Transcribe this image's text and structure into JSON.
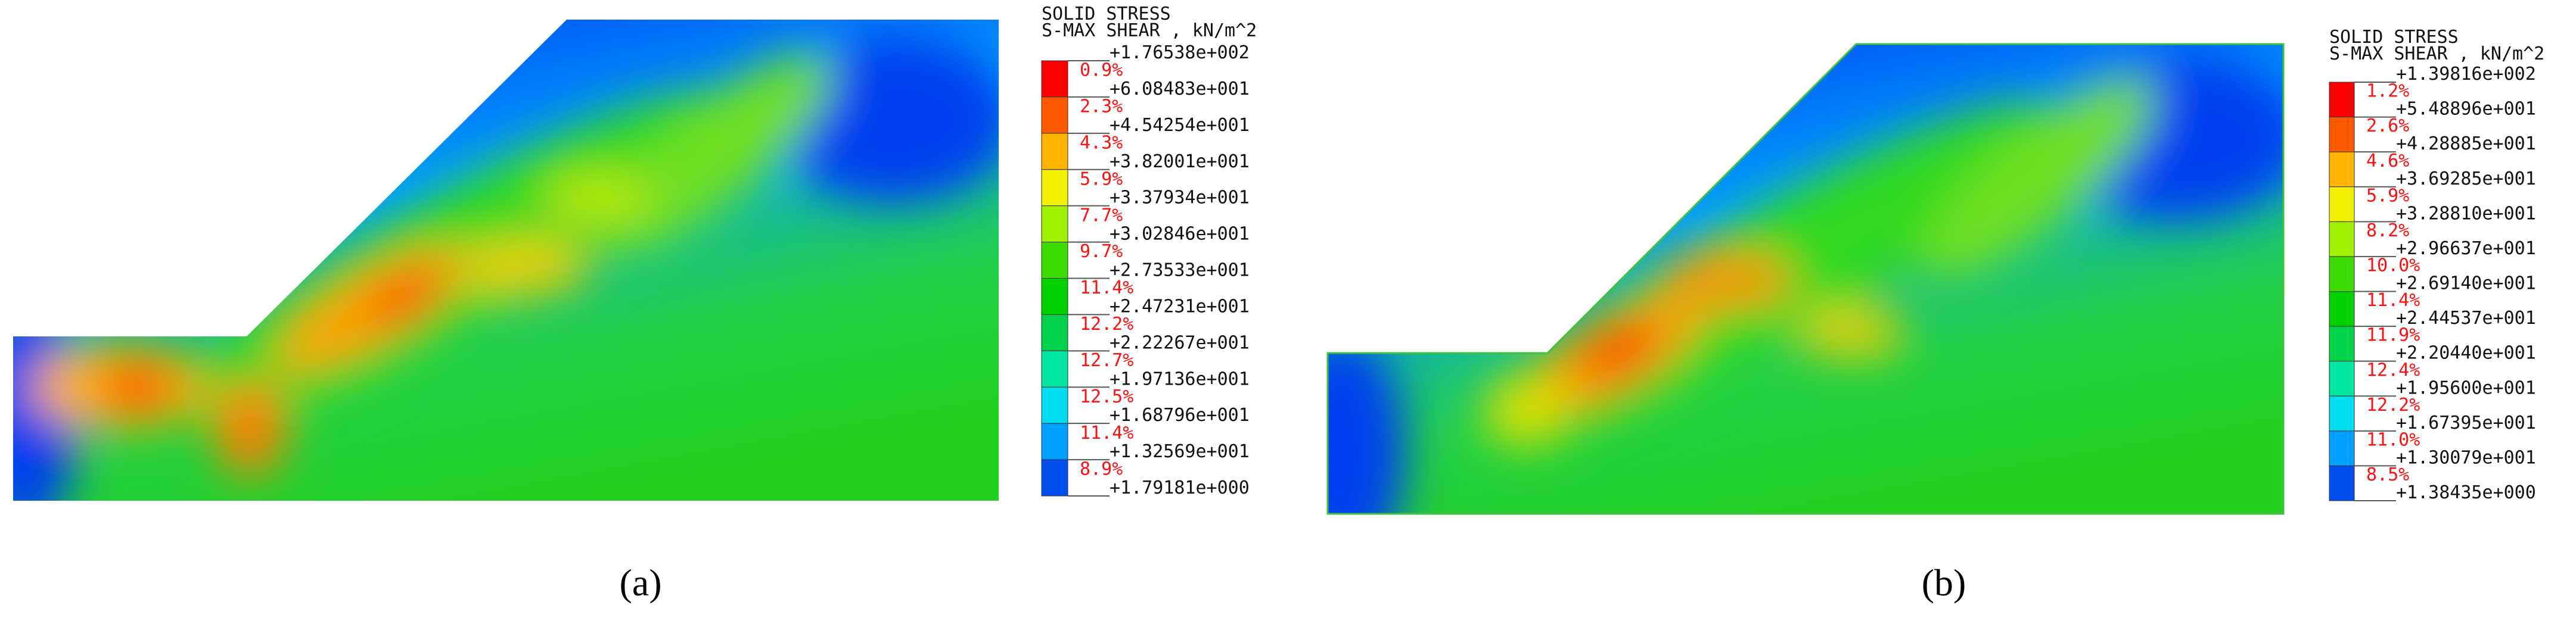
{
  "band_colors": [
    "#ff0000",
    "#ff5a00",
    "#ffb400",
    "#f0f000",
    "#a0f000",
    "#3cdc00",
    "#00d200",
    "#00d24a",
    "#00e6a0",
    "#00dcf0",
    "#00a0ff",
    "#0050f0",
    "#0000e6"
  ],
  "panels": [
    {
      "caption": "(a)",
      "legend": {
        "title": [
          "SOLID STRESS",
          "S-MAX SHEAR , kN/m^2"
        ],
        "levels": [
          "+1.76538e+002",
          "+6.08483e+001",
          "+4.54254e+001",
          "+3.82001e+001",
          "+3.37934e+001",
          "+3.02846e+001",
          "+2.73533e+001",
          "+2.47231e+001",
          "+2.22267e+001",
          "+1.97136e+001",
          "+1.68796e+001",
          "+1.32569e+001",
          "+1.79181e+000"
        ],
        "percents": [
          "0.9%",
          "2.3%",
          "4.3%",
          "5.9%",
          "7.7%",
          "9.7%",
          "11.4%",
          "12.2%",
          "12.7%",
          "12.5%",
          "11.4%",
          "8.9%"
        ]
      }
    },
    {
      "caption": "(b)",
      "legend": {
        "title": [
          "SOLID STRESS",
          "S-MAX SHEAR , kN/m^2"
        ],
        "levels": [
          "+1.39816e+002",
          "+5.48896e+001",
          "+4.28885e+001",
          "+3.69285e+001",
          "+3.28810e+001",
          "+2.96637e+001",
          "+2.69140e+001",
          "+2.44537e+001",
          "+2.20440e+001",
          "+1.95600e+001",
          "+1.67395e+001",
          "+1.30079e+001",
          "+1.38435e+000"
        ],
        "percents": [
          "1.2%",
          "2.6%",
          "4.6%",
          "5.9%",
          "8.2%",
          "10.0%",
          "11.4%",
          "11.9%",
          "12.4%",
          "12.2%",
          "11.0%",
          "8.5%"
        ]
      }
    }
  ]
}
